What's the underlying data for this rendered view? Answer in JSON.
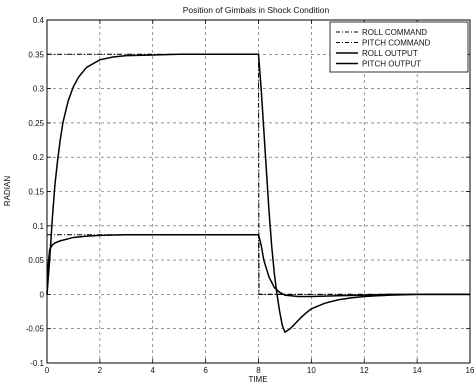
{
  "chart_data": {
    "type": "line",
    "title": "Position of Gimbals in Shock Condition",
    "xlabel": "TIME",
    "ylabel": "RADIAN",
    "xlim": [
      0,
      16
    ],
    "ylim": [
      -0.1,
      0.4
    ],
    "xticks": [
      0,
      2,
      4,
      6,
      8,
      10,
      12,
      14,
      16
    ],
    "yticks": [
      -0.1,
      -0.05,
      0,
      0.05,
      0.1,
      0.15,
      0.2,
      0.25,
      0.3,
      0.35,
      0.4
    ],
    "ytick_labels": [
      "-0.1",
      "-0.05",
      "0",
      "0.05",
      "0.1",
      "0.15",
      "0.2",
      "0.25",
      "0.3",
      "0.35",
      "0.4"
    ],
    "grid": true,
    "legend_position": "top-right",
    "series": [
      {
        "name": "ROLL COMMAND",
        "style": "dashdot",
        "x": [
          0,
          8,
          8.02,
          16
        ],
        "y": [
          0.35,
          0.35,
          0,
          0
        ]
      },
      {
        "name": "PITCH COMMAND",
        "style": "dashdot",
        "x": [
          0,
          8,
          8.02,
          16
        ],
        "y": [
          0.087,
          0.087,
          0,
          0
        ]
      },
      {
        "name": "ROLL OUTPUT",
        "style": "solid",
        "x": [
          0,
          0.1,
          0.2,
          0.3,
          0.4,
          0.5,
          0.6,
          0.8,
          1.0,
          1.2,
          1.5,
          2.0,
          2.5,
          3.0,
          4.0,
          5.0,
          6.0,
          7.0,
          8.0,
          8.1,
          8.2,
          8.3,
          8.4,
          8.5,
          8.6,
          8.7,
          8.8,
          8.9,
          9.0,
          9.2,
          9.4,
          9.6,
          9.8,
          10.0,
          10.5,
          11.0,
          11.5,
          12.0,
          12.5,
          13.0,
          14.0,
          15.0,
          16.0
        ],
        "y": [
          0,
          0.05,
          0.11,
          0.16,
          0.195,
          0.225,
          0.25,
          0.282,
          0.303,
          0.317,
          0.331,
          0.342,
          0.346,
          0.348,
          0.349,
          0.35,
          0.35,
          0.35,
          0.35,
          0.3,
          0.24,
          0.18,
          0.12,
          0.07,
          0.03,
          0.0,
          -0.025,
          -0.045,
          -0.055,
          -0.05,
          -0.042,
          -0.034,
          -0.027,
          -0.021,
          -0.013,
          -0.008,
          -0.005,
          -0.003,
          -0.002,
          -0.001,
          0,
          0,
          0
        ]
      },
      {
        "name": "PITCH OUTPUT",
        "style": "solid",
        "x": [
          0,
          0.05,
          0.1,
          0.2,
          0.3,
          0.5,
          0.8,
          1.0,
          1.5,
          2.0,
          3.0,
          4.0,
          5.0,
          6.0,
          7.0,
          8.0,
          8.1,
          8.2,
          8.4,
          8.6,
          8.8,
          9.0,
          9.5,
          10.0,
          11.0,
          12.0,
          13.0,
          14.0,
          15.0,
          16.0
        ],
        "y": [
          0,
          0.045,
          0.065,
          0.072,
          0.075,
          0.078,
          0.081,
          0.083,
          0.085,
          0.086,
          0.087,
          0.087,
          0.087,
          0.087,
          0.087,
          0.087,
          0.072,
          0.05,
          0.025,
          0.01,
          0.003,
          -0.001,
          -0.003,
          -0.003,
          -0.002,
          -0.001,
          0,
          0,
          0,
          0
        ]
      }
    ]
  }
}
